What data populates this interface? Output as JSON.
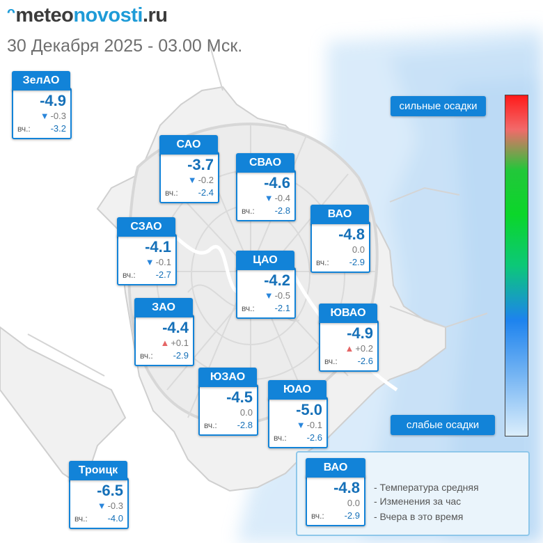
{
  "logo": {
    "mark": "ᵔ",
    "part1": "meteo",
    "part2": "novosti",
    "part3": ".ru"
  },
  "subtitle": "30 Декабря 2025 - 03.00 Мск.",
  "yesterday_label": "вч.:",
  "scale": {
    "high_label": "сильные осадки",
    "low_label": "слабые осадки",
    "colors": [
      "#ff1a1a",
      "#0bd62a",
      "#1d83ee",
      "#dbeefc"
    ]
  },
  "districts": [
    {
      "name": "ЗелАО",
      "temp": "-4.9",
      "trend": "down",
      "change": "-0.3",
      "yesterday": "-3.2"
    },
    {
      "name": "САО",
      "temp": "-3.7",
      "trend": "down",
      "change": "-0.2",
      "yesterday": "-2.4"
    },
    {
      "name": "СВАО",
      "temp": "-4.6",
      "trend": "down",
      "change": "-0.4",
      "yesterday": "-2.8"
    },
    {
      "name": "ВАО",
      "temp": "-4.8",
      "trend": "none",
      "change": "0.0",
      "yesterday": "-2.9"
    },
    {
      "name": "СЗАО",
      "temp": "-4.1",
      "trend": "down",
      "change": "-0.1",
      "yesterday": "-2.7"
    },
    {
      "name": "ЦАО",
      "temp": "-4.2",
      "trend": "down",
      "change": "-0.5",
      "yesterday": "-2.1"
    },
    {
      "name": "ЗАО",
      "temp": "-4.4",
      "trend": "up",
      "change": "+0.1",
      "yesterday": "-2.9"
    },
    {
      "name": "ЮВАО",
      "temp": "-4.9",
      "trend": "up",
      "change": "+0.2",
      "yesterday": "-2.6"
    },
    {
      "name": "ЮЗАО",
      "temp": "-4.5",
      "trend": "none",
      "change": "0.0",
      "yesterday": "-2.8"
    },
    {
      "name": "ЮАО",
      "temp": "-5.0",
      "trend": "down",
      "change": "-0.1",
      "yesterday": "-2.6"
    },
    {
      "name": "Троицк",
      "temp": "-6.5",
      "trend": "down",
      "change": "-0.3",
      "yesterday": "-4.0"
    }
  ],
  "legend": {
    "sample": {
      "name": "ВАО",
      "temp": "-4.8",
      "change": "0.0",
      "yesterday": "-2.9"
    },
    "items": [
      "- Температура средняя",
      "- Изменения за час",
      "- Вчера в это время"
    ]
  }
}
